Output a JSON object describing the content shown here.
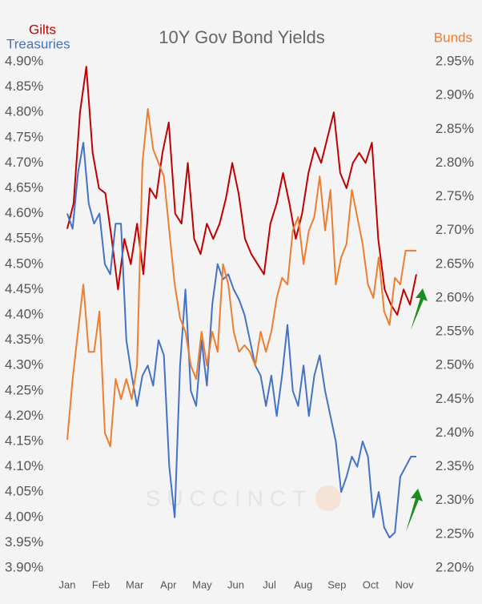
{
  "chart_data": {
    "type": "line",
    "title": "10Y Gov Bond Yields",
    "watermark": "SUCCINCT",
    "xticks": [
      "Jan",
      "Feb",
      "Mar",
      "Apr",
      "May",
      "Jun",
      "Jul",
      "Aug",
      "Sep",
      "Oct",
      "Nov"
    ],
    "ylim": [
      3.9,
      4.9
    ],
    "yticks": [
      {
        "value": 3.9,
        "label": "3.90%"
      },
      {
        "value": 3.95,
        "label": "3.95%"
      },
      {
        "value": 4.0,
        "label": "4.00%"
      },
      {
        "value": 4.05,
        "label": "4.05%"
      },
      {
        "value": 4.1,
        "label": "4.10%"
      },
      {
        "value": 4.15,
        "label": "4.15%"
      },
      {
        "value": 4.2,
        "label": "4.20%"
      },
      {
        "value": 4.25,
        "label": "4.25%"
      },
      {
        "value": 4.3,
        "label": "4.30%"
      },
      {
        "value": 4.35,
        "label": "4.35%"
      },
      {
        "value": 4.4,
        "label": "4.40%"
      },
      {
        "value": 4.45,
        "label": "4.45%"
      },
      {
        "value": 4.5,
        "label": "4.50%"
      },
      {
        "value": 4.55,
        "label": "4.55%"
      },
      {
        "value": 4.6,
        "label": "4.60%"
      },
      {
        "value": 4.65,
        "label": "4.65%"
      },
      {
        "value": 4.7,
        "label": "4.70%"
      },
      {
        "value": 4.75,
        "label": "4.75%"
      },
      {
        "value": 4.8,
        "label": "4.80%"
      },
      {
        "value": 4.85,
        "label": "4.85%"
      },
      {
        "value": 4.9,
        "label": "4.90%"
      }
    ],
    "y2lim": [
      2.2,
      2.95
    ],
    "y2ticks": [
      {
        "value": 2.2,
        "label": "2.20%"
      },
      {
        "value": 2.25,
        "label": "2.25%"
      },
      {
        "value": 2.3,
        "label": "2.30%"
      },
      {
        "value": 2.35,
        "label": "2.35%"
      },
      {
        "value": 2.4,
        "label": "2.40%"
      },
      {
        "value": 2.45,
        "label": "2.45%"
      },
      {
        "value": 2.5,
        "label": "2.50%"
      },
      {
        "value": 2.55,
        "label": "2.55%"
      },
      {
        "value": 2.6,
        "label": "2.60%"
      },
      {
        "value": 2.65,
        "label": "2.65%"
      },
      {
        "value": 2.7,
        "label": "2.70%"
      },
      {
        "value": 2.75,
        "label": "2.75%"
      },
      {
        "value": 2.8,
        "label": "2.80%"
      },
      {
        "value": 2.85,
        "label": "2.85%"
      },
      {
        "value": 2.9,
        "label": "2.90%"
      },
      {
        "value": 2.95,
        "label": "2.95%"
      }
    ],
    "series": [
      {
        "name": "Gilts",
        "color": "#c00000",
        "values": [
          4.57,
          4.62,
          4.8,
          4.89,
          4.72,
          4.65,
          4.64,
          4.55,
          4.45,
          4.55,
          4.5,
          4.58,
          4.48,
          4.65,
          4.63,
          4.72,
          4.78,
          4.6,
          4.58,
          4.7,
          4.55,
          4.52,
          4.58,
          4.55,
          4.58,
          4.63,
          4.7,
          4.64,
          4.55,
          4.52,
          4.5,
          4.48,
          4.58,
          4.62,
          4.68,
          4.62,
          4.55,
          4.6,
          4.68,
          4.73,
          4.7,
          4.75,
          4.8,
          4.68,
          4.65,
          4.7,
          4.72,
          4.7,
          4.74,
          4.55,
          4.45,
          4.42,
          4.4,
          4.45,
          4.42,
          4.48
        ]
      },
      {
        "name": "Treasuries",
        "color": "#4472c4",
        "values": [
          4.6,
          4.57,
          4.68,
          4.74,
          4.62,
          4.58,
          4.6,
          4.5,
          4.48,
          4.58,
          4.58,
          4.35,
          4.28,
          4.22,
          4.28,
          4.3,
          4.26,
          4.35,
          4.32,
          4.1,
          4.0,
          4.3,
          4.45,
          4.25,
          4.22,
          4.35,
          4.26,
          4.42,
          4.5,
          4.47,
          4.48,
          4.45,
          4.43,
          4.4,
          4.35,
          4.3,
          4.28,
          4.22,
          4.28,
          4.2,
          4.28,
          4.38,
          4.25,
          4.22,
          4.3,
          4.2,
          4.28,
          4.32,
          4.25,
          4.2,
          4.15,
          4.05,
          4.08,
          4.12,
          4.1,
          4.15,
          4.12,
          4.0,
          4.05,
          3.98,
          3.96,
          3.97,
          4.08,
          4.1,
          4.12,
          4.12
        ]
      },
      {
        "name": "Bunds",
        "color": "#ed7d31",
        "axis": "y2",
        "values": [
          2.39,
          2.48,
          2.55,
          2.62,
          2.52,
          2.52,
          2.58,
          2.4,
          2.38,
          2.48,
          2.45,
          2.48,
          2.45,
          2.5,
          2.8,
          2.88,
          2.82,
          2.8,
          2.78,
          2.7,
          2.62,
          2.57,
          2.55,
          2.5,
          2.48,
          2.55,
          2.5,
          2.55,
          2.52,
          2.65,
          2.62,
          2.55,
          2.52,
          2.53,
          2.52,
          2.5,
          2.55,
          2.52,
          2.55,
          2.6,
          2.63,
          2.62,
          2.7,
          2.72,
          2.65,
          2.7,
          2.72,
          2.78,
          2.7,
          2.76,
          2.62,
          2.66,
          2.68,
          2.76,
          2.72,
          2.68,
          2.62,
          2.6,
          2.66,
          2.58,
          2.56,
          2.63,
          2.62,
          2.67,
          2.67,
          2.67
        ]
      }
    ]
  }
}
